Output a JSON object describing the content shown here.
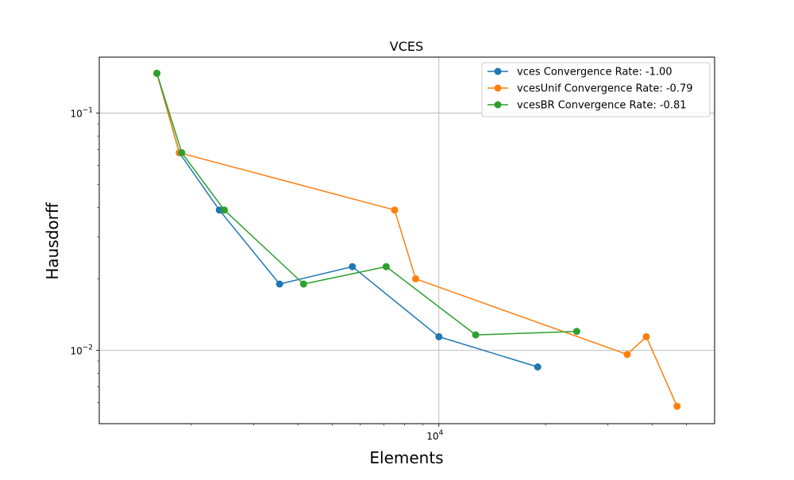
{
  "chart_data": {
    "type": "line",
    "title": "VCES",
    "xlabel": "Elements",
    "ylabel": "Hausdorff",
    "x_scale": "log",
    "y_scale": "log",
    "xlim": [
      1100,
      60000
    ],
    "ylim": [
      0.0049,
      0.172
    ],
    "grid": true,
    "legend_position": "top-right",
    "x_major_ticks": [
      {
        "value": 10000,
        "label": "10^4",
        "base": "10",
        "exp": "4"
      }
    ],
    "y_major_ticks": [
      {
        "value": 0.1,
        "label": "10^-1",
        "base": "10",
        "exp": "−1"
      },
      {
        "value": 0.01,
        "label": "10^-2",
        "base": "10",
        "exp": "−2"
      }
    ],
    "x_minor_ticks": [
      2000,
      3000,
      4000,
      5000,
      6000,
      7000,
      8000,
      9000,
      20000,
      30000,
      40000,
      50000
    ],
    "y_minor_ticks": [
      0.006,
      0.007,
      0.008,
      0.009,
      0.02,
      0.03,
      0.04,
      0.05,
      0.06,
      0.07,
      0.08,
      0.09
    ],
    "series": [
      {
        "name": "vces Convergence Rate: -1.00",
        "color": "#1f77b4",
        "x": [
          1600,
          1850,
          2400,
          3550,
          5700,
          10000,
          19000
        ],
        "y": [
          0.147,
          0.068,
          0.039,
          0.019,
          0.0225,
          0.0114,
          0.0085
        ]
      },
      {
        "name": "vcesUnif Convergence Rate: -0.79",
        "color": "#ff7f0e",
        "x": [
          1600,
          1850,
          7500,
          8600,
          34000,
          38500,
          47000
        ],
        "y": [
          0.147,
          0.068,
          0.039,
          0.02,
          0.0096,
          0.0114,
          0.0058
        ]
      },
      {
        "name": "vcesBR Convergence Rate: -0.81",
        "color": "#2ca02c",
        "x": [
          1600,
          1880,
          2480,
          4150,
          7100,
          12700,
          24500
        ],
        "y": [
          0.147,
          0.068,
          0.039,
          0.019,
          0.0225,
          0.0116,
          0.012
        ]
      }
    ]
  }
}
